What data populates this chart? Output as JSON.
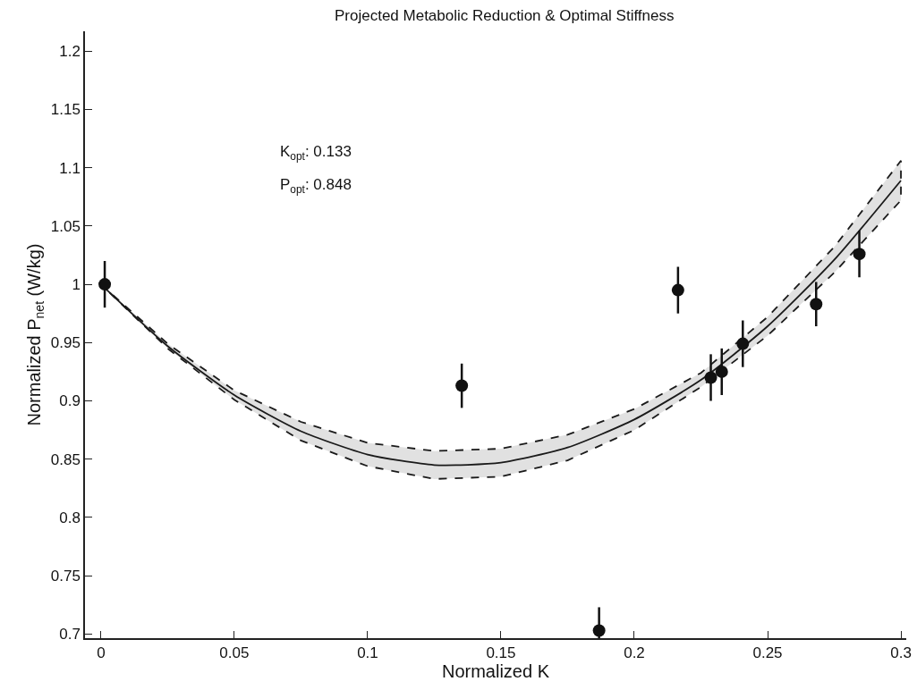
{
  "chart_data": {
    "type": "scatter",
    "title": "Projected Metabolic Reduction & Optimal Stiffness",
    "xlabel": "Normalized K",
    "ylabel": "Normalized P$_{net}$ (W/kg)",
    "annotations": [
      "K$_{opt}$: 0.133",
      "P$_{opt}$: 0.848"
    ],
    "xlim": [
      -0.006,
      0.302
    ],
    "xticks": [
      0,
      0.05,
      0.1,
      0.15,
      0.2,
      0.25,
      0.3
    ],
    "ylim": [
      0.6965,
      1.217
    ],
    "yticks": [
      0.7,
      0.75,
      0.8,
      0.85,
      0.9,
      0.95,
      1,
      1.05,
      1.1,
      1.15,
      1.2
    ],
    "grid": false,
    "series": [
      {
        "type": "line",
        "color": "#1a1a1a",
        "line_style": "solid",
        "marker": "none",
        "x": [
          0,
          0.025,
          0.05,
          0.075,
          0.1,
          0.125,
          0.15,
          0.175,
          0.2,
          0.225,
          0.25,
          0.275,
          0.3
        ],
        "values": [
          1.0,
          0.947,
          0.905,
          0.874,
          0.854,
          0.845,
          0.847,
          0.86,
          0.884,
          0.918,
          0.964,
          1.021,
          1.089
        ],
        "lower": [
          1.0,
          0.945,
          0.901,
          0.866,
          0.844,
          0.833,
          0.835,
          0.849,
          0.875,
          0.912,
          0.956,
          1.01,
          1.072
        ],
        "upper": [
          1.0,
          0.949,
          0.909,
          0.882,
          0.864,
          0.857,
          0.859,
          0.871,
          0.893,
          0.924,
          0.972,
          1.032,
          1.106
        ]
      },
      {
        "type": "scatter",
        "color": "#111111",
        "marker": "circle",
        "x": [
          0.0014,
          0.1353,
          0.1868,
          0.2164,
          0.2287,
          0.2328,
          0.2407,
          0.2682,
          0.2844
        ],
        "values": [
          1.0,
          0.913,
          0.703,
          0.995,
          0.92,
          0.925,
          0.949,
          0.983,
          1.026
        ],
        "errors": [
          0.02,
          0.019,
          0.02,
          0.02,
          0.02,
          0.02,
          0.02,
          0.019,
          0.02
        ]
      }
    ]
  }
}
